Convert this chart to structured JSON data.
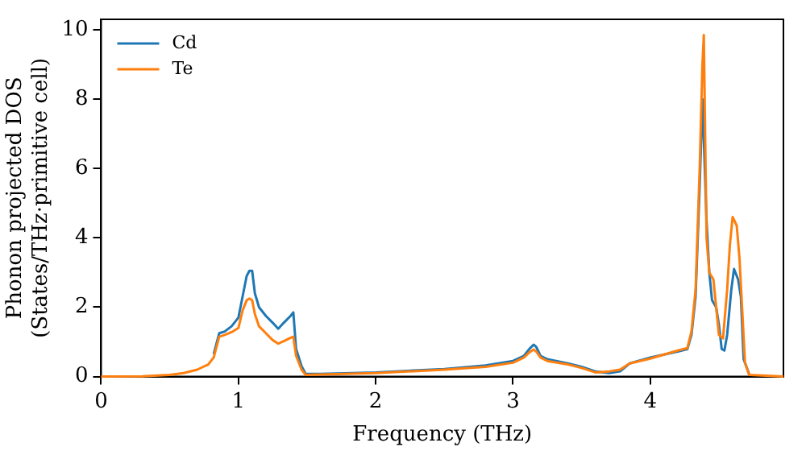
{
  "chart_data": {
    "type": "line",
    "xlabel": "Frequency (THz)",
    "ylabel": "Phonon projected DOS\n(States/THz·primitive cell)",
    "xlim": [
      0,
      4.97
    ],
    "xticks": [
      0,
      1,
      2,
      3,
      4
    ],
    "ylim": [
      0,
      10.3
    ],
    "yticks": [
      0,
      2,
      4,
      6,
      8,
      10
    ],
    "legend": "top left",
    "grid": false,
    "marker": "none",
    "line_style": "solid",
    "series": [
      {
        "name": "Cd",
        "color": "#1f77b4",
        "x": [
          0.82,
          0.86,
          0.9,
          0.95,
          1.0,
          1.03,
          1.06,
          1.08,
          1.1,
          1.12,
          1.15,
          1.2,
          1.25,
          1.29,
          1.33,
          1.38,
          1.4,
          1.42,
          1.46,
          1.49,
          1.6,
          2.0,
          2.5,
          2.8,
          3.0,
          3.08,
          3.12,
          3.15,
          3.17,
          3.2,
          3.25,
          3.4,
          3.5,
          3.6,
          3.7,
          3.78,
          3.85,
          4.0,
          4.2,
          4.27,
          4.3,
          4.33,
          4.36,
          4.38,
          4.41,
          4.43,
          4.45,
          4.48,
          4.5,
          4.52,
          4.54,
          4.56,
          4.59,
          4.61,
          4.64,
          4.66,
          4.68,
          4.72
        ],
        "values": [
          0.65,
          1.25,
          1.3,
          1.45,
          1.7,
          2.3,
          2.9,
          3.05,
          3.05,
          2.4,
          2.0,
          1.75,
          1.55,
          1.38,
          1.55,
          1.75,
          1.85,
          0.8,
          0.3,
          0.08,
          0.08,
          0.12,
          0.22,
          0.32,
          0.45,
          0.6,
          0.8,
          0.92,
          0.85,
          0.6,
          0.5,
          0.38,
          0.28,
          0.15,
          0.1,
          0.15,
          0.38,
          0.55,
          0.72,
          0.79,
          1.2,
          2.3,
          5.5,
          8.0,
          4.5,
          3.0,
          2.2,
          2.0,
          1.5,
          0.8,
          0.75,
          1.2,
          2.5,
          3.1,
          2.8,
          2.3,
          0.5,
          0.08
        ]
      },
      {
        "name": "Te",
        "color": "#ff7f0e",
        "x": [
          0,
          0.3,
          0.5,
          0.6,
          0.7,
          0.78,
          0.82,
          0.86,
          0.9,
          0.95,
          1.0,
          1.03,
          1.06,
          1.08,
          1.1,
          1.12,
          1.15,
          1.2,
          1.25,
          1.29,
          1.33,
          1.38,
          1.4,
          1.42,
          1.46,
          1.49,
          1.6,
          2.0,
          2.5,
          2.8,
          3.0,
          3.08,
          3.12,
          3.15,
          3.17,
          3.2,
          3.25,
          3.4,
          3.5,
          3.6,
          3.7,
          3.78,
          3.85,
          4.0,
          4.2,
          4.27,
          4.3,
          4.33,
          4.36,
          4.38,
          4.39,
          4.41,
          4.43,
          4.46,
          4.48,
          4.5,
          4.53,
          4.56,
          4.58,
          4.6,
          4.63,
          4.65,
          4.69,
          4.72,
          4.97
        ],
        "values": [
          0,
          0.01,
          0.05,
          0.1,
          0.2,
          0.35,
          0.55,
          1.15,
          1.2,
          1.28,
          1.4,
          1.9,
          2.2,
          2.25,
          2.2,
          1.8,
          1.45,
          1.25,
          1.05,
          0.95,
          1.02,
          1.12,
          1.15,
          0.6,
          0.2,
          0.05,
          0.06,
          0.1,
          0.2,
          0.28,
          0.4,
          0.55,
          0.7,
          0.78,
          0.72,
          0.55,
          0.45,
          0.35,
          0.25,
          0.12,
          0.15,
          0.2,
          0.38,
          0.52,
          0.75,
          0.82,
          1.3,
          2.5,
          6.0,
          9.0,
          9.85,
          4.0,
          3.0,
          2.8,
          2.0,
          1.2,
          1.1,
          2.5,
          3.8,
          4.6,
          4.35,
          3.4,
          0.4,
          0.05,
          0
        ]
      }
    ]
  }
}
